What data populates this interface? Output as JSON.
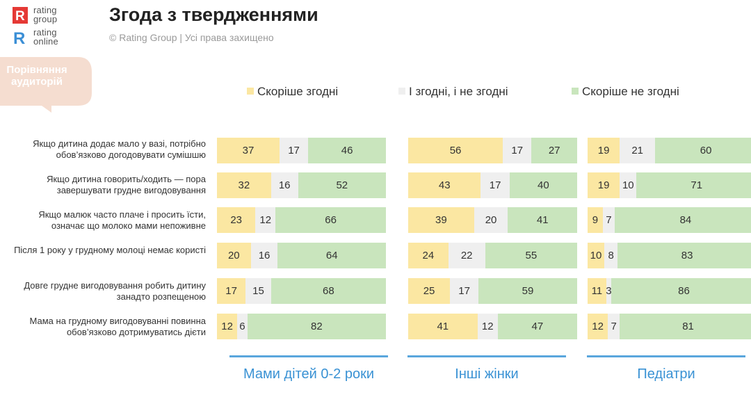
{
  "header": {
    "title": "Згода з твердженнями",
    "copyright": "© Rating Group | Усі права захищено"
  },
  "logos": {
    "rating_group": {
      "line1": "rating",
      "line2": "group",
      "color": "#e53935"
    },
    "rating_online": {
      "line1": "rating",
      "line2": "online",
      "color": "#3b8fd6"
    }
  },
  "badge": {
    "line1": "Порівняння",
    "line2": "аудиторій",
    "color": "#f5ddd0"
  },
  "colors": {
    "agree": "#fbe7a2",
    "neutral": "#efefef",
    "disagree": "#c9e5bd",
    "accent": "#3a92d4"
  },
  "chart_data": {
    "type": "bar",
    "orientation": "horizontal",
    "stacked": true,
    "percent_scale": true,
    "title": "Згода з твердженнями",
    "legend": [
      "Скоріше згодні",
      "І згодні, і не згодні",
      "Скоріше не згодні"
    ],
    "categories": [
      "Якщо дитина додає мало у вазі, потрібно обов’язково догодовувати сумішшю",
      "Якщо дитина говорить/ходить — пора завершувати грудне вигодовування",
      "Якщо малюк часто плаче і просить їсти, означає що молоко мами непоживне",
      "Після 1 року у грудному молоці немає користі",
      "Довге грудне вигодовування робить дитину занадто розпещеною",
      "Мама на грудному вигодовуванні повинна обов’язково дотримуватись дієти"
    ],
    "groups": [
      {
        "name": "Мами дітей 0-2 роки",
        "rows": [
          [
            37,
            17,
            46
          ],
          [
            32,
            16,
            52
          ],
          [
            23,
            12,
            66
          ],
          [
            20,
            16,
            64
          ],
          [
            17,
            15,
            68
          ],
          [
            12,
            6,
            82
          ]
        ]
      },
      {
        "name": "Інші жінки",
        "rows": [
          [
            56,
            17,
            27
          ],
          [
            43,
            17,
            40
          ],
          [
            39,
            20,
            41
          ],
          [
            24,
            22,
            55
          ],
          [
            25,
            17,
            59
          ],
          [
            41,
            12,
            47
          ]
        ]
      },
      {
        "name": "Педіатри",
        "rows": [
          [
            19,
            21,
            60
          ],
          [
            19,
            10,
            71
          ],
          [
            9,
            7,
            84
          ],
          [
            10,
            8,
            83
          ],
          [
            11,
            3,
            86
          ],
          [
            12,
            7,
            81
          ]
        ]
      }
    ]
  }
}
